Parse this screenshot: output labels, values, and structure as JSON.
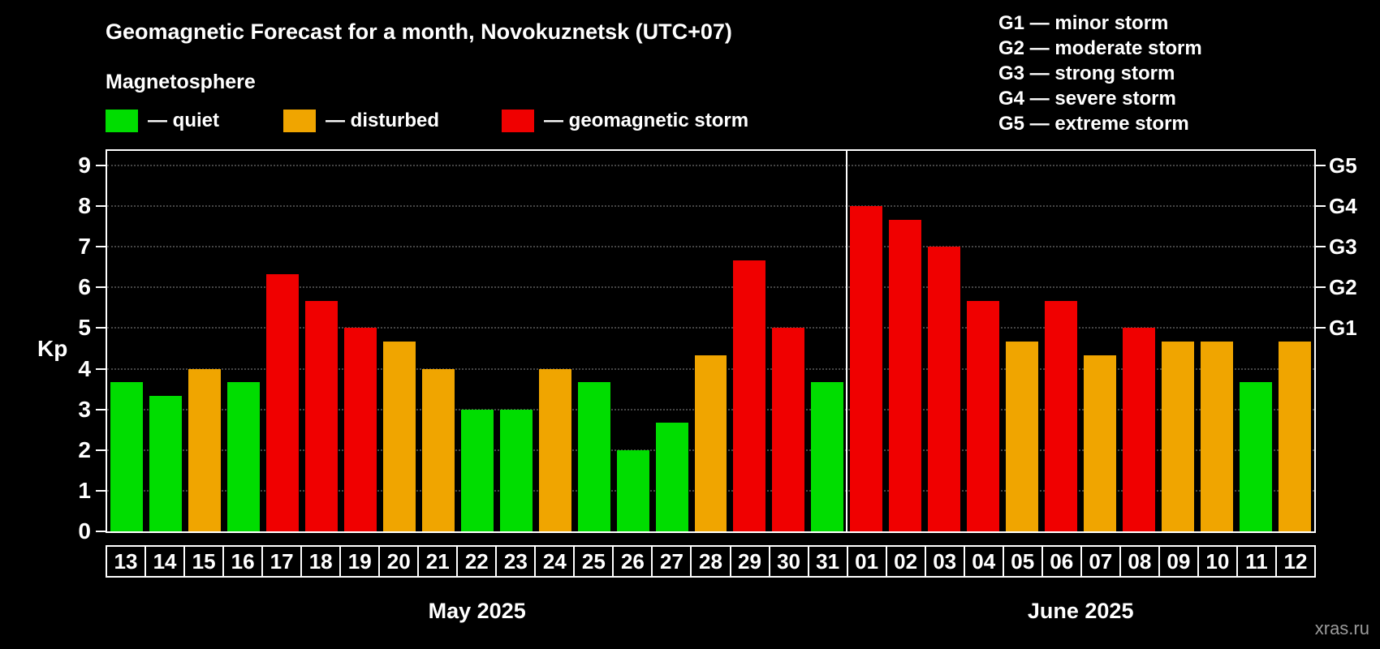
{
  "title": "Geomagnetic Forecast for a month, Novokuznetsk (UTC+07)",
  "subtitle": "Magnetosphere",
  "legend": {
    "quiet": {
      "label": "— quiet",
      "color": "#00dd00"
    },
    "disturbed": {
      "label": "— disturbed",
      "color": "#f0a500"
    },
    "storm": {
      "label": "— geomagnetic storm",
      "color": "#f00000"
    }
  },
  "storm_scale": [
    "G1 — minor storm",
    "G2 — moderate storm",
    "G3 — strong storm",
    "G4 — severe storm",
    "G5 — extreme storm"
  ],
  "watermark": "xras.ru",
  "chart_data": {
    "type": "bar",
    "title": "Geomagnetic Forecast for a month, Novokuznetsk (UTC+07)",
    "ylabel": "Kp",
    "ylim": [
      0,
      9.3
    ],
    "yticks": [
      0,
      1,
      2,
      3,
      4,
      5,
      6,
      7,
      8,
      9
    ],
    "grid": true,
    "right_axis_ticks": [
      {
        "kp": 5,
        "label": "G1"
      },
      {
        "kp": 6,
        "label": "G2"
      },
      {
        "kp": 7,
        "label": "G3"
      },
      {
        "kp": 8,
        "label": "G4"
      },
      {
        "kp": 9,
        "label": "G5"
      }
    ],
    "months": [
      {
        "label": "May 2025",
        "days": 19
      },
      {
        "label": "June 2025",
        "days": 12
      }
    ],
    "categories": [
      "13",
      "14",
      "15",
      "16",
      "17",
      "18",
      "19",
      "20",
      "21",
      "22",
      "23",
      "24",
      "25",
      "26",
      "27",
      "28",
      "29",
      "30",
      "31",
      "01",
      "02",
      "03",
      "04",
      "05",
      "06",
      "07",
      "08",
      "09",
      "10",
      "11",
      "12"
    ],
    "values": [
      3.67,
      3.33,
      4,
      3.67,
      6.33,
      5.67,
      5,
      4.67,
      4,
      3,
      3,
      4,
      3.67,
      2,
      2.67,
      4.33,
      6.67,
      5,
      3.67,
      8,
      7.67,
      7,
      5.67,
      4.67,
      5.67,
      4.33,
      5,
      4.67,
      4.67,
      3.67,
      4.67
    ],
    "statuses": [
      "quiet",
      "quiet",
      "disturbed",
      "quiet",
      "storm",
      "storm",
      "storm",
      "disturbed",
      "disturbed",
      "quiet",
      "quiet",
      "disturbed",
      "quiet",
      "quiet",
      "quiet",
      "disturbed",
      "storm",
      "storm",
      "quiet",
      "storm",
      "storm",
      "storm",
      "storm",
      "disturbed",
      "storm",
      "disturbed",
      "storm",
      "disturbed",
      "disturbed",
      "quiet",
      "disturbed"
    ]
  }
}
